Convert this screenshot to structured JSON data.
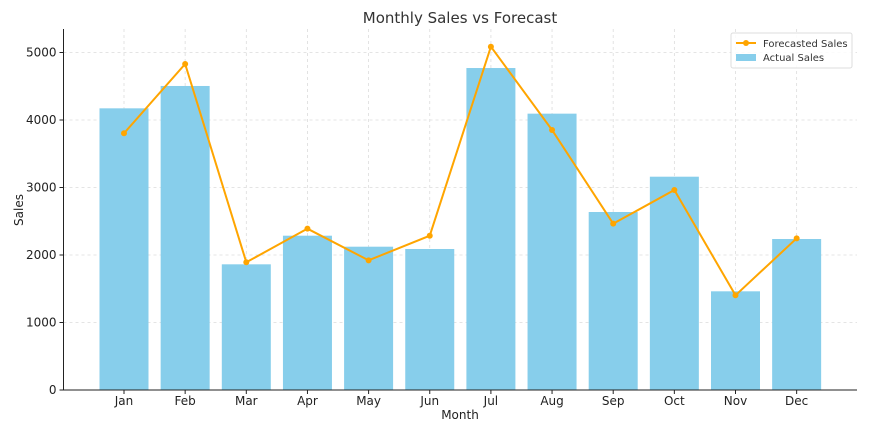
{
  "chart_data": {
    "type": "bar",
    "title": "Monthly Sales vs Forecast",
    "xlabel": "Month",
    "ylabel": "Sales",
    "ylim": [
      0,
      5350
    ],
    "yticks": [
      0,
      1000,
      2000,
      3000,
      4000,
      5000
    ],
    "grid": true,
    "legend_position": "upper right",
    "categories": [
      "Jan",
      "Feb",
      "Mar",
      "Apr",
      "May",
      "Jun",
      "Jul",
      "Aug",
      "Sep",
      "Oct",
      "Nov",
      "Dec"
    ],
    "series": [
      {
        "name": "Actual Sales",
        "type": "bar",
        "color": "#87ceeb",
        "values": [
          4173,
          4504,
          1862,
          2286,
          2123,
          2089,
          4770,
          4094,
          2637,
          3160,
          1462,
          2237
        ]
      },
      {
        "name": "Forecasted Sales",
        "type": "line",
        "marker": "o",
        "color": "#ffa500",
        "values": [
          3803,
          4830,
          1892,
          2390,
          1921,
          2286,
          5086,
          3852,
          2464,
          2963,
          1403,
          2247
        ]
      }
    ],
    "legend": [
      "Forecasted Sales",
      "Actual Sales"
    ]
  }
}
